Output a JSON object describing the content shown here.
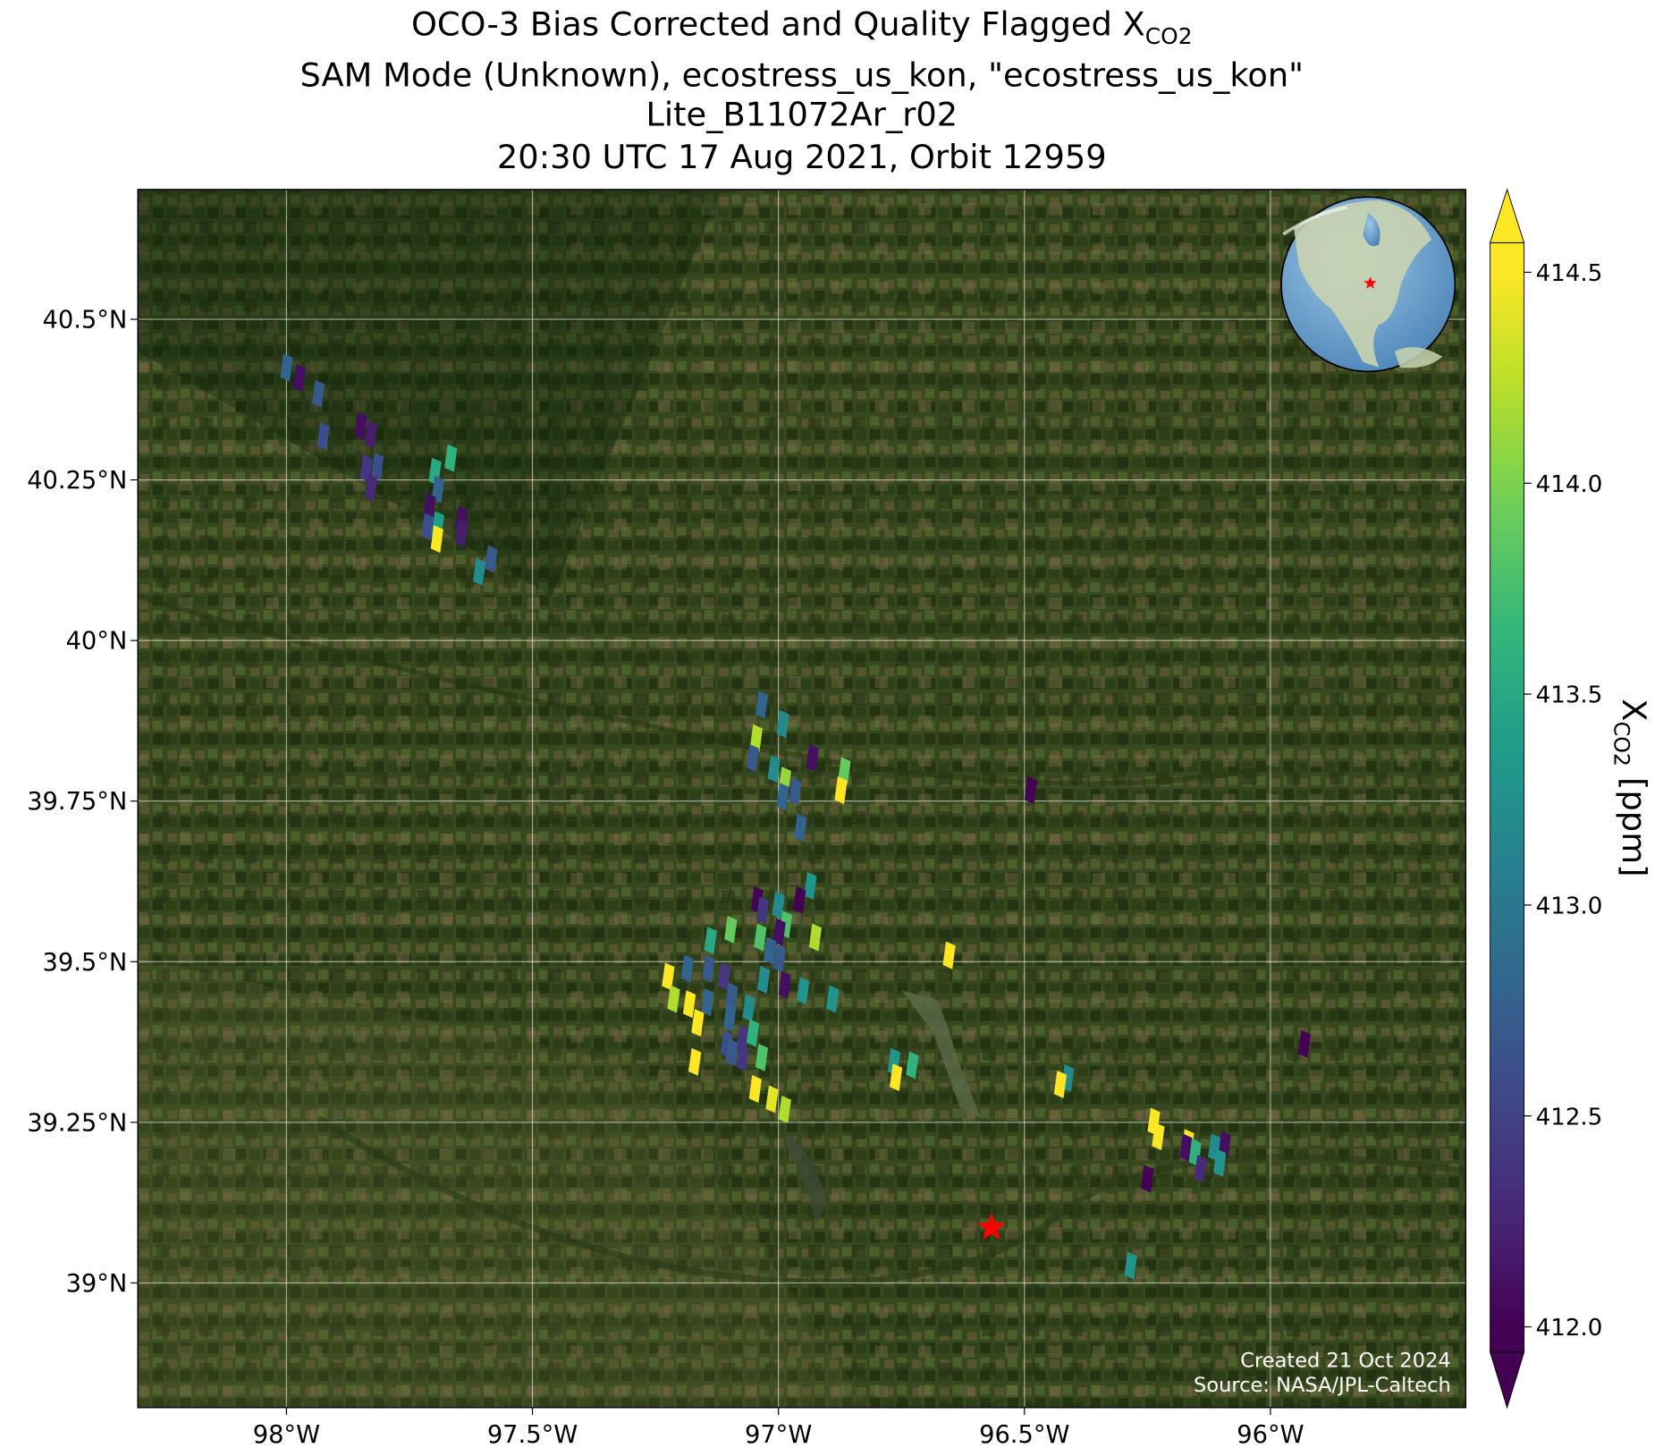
{
  "chart_data": {
    "type": "map",
    "title": "OCO-3 Bias Corrected and Quality Flagged X",
    "title_subscript": "CO2",
    "subtitle_lines": [
      "SAM Mode (Unknown), ecostress_us_kon, \"ecostress_us_kon\"",
      "Lite_B11072Ar_r02",
      "20:30 UTC 17 Aug 2021, Orbit 12959"
    ],
    "xlim": [
      -98.302,
      -95.603
    ],
    "ylim": [
      38.806,
      40.702
    ],
    "xticks": [
      {
        "value": -98,
        "label": "98°W"
      },
      {
        "value": -97.5,
        "label": "97.5°W"
      },
      {
        "value": -97,
        "label": "97°W"
      },
      {
        "value": -96.5,
        "label": "96.5°W"
      },
      {
        "value": -96,
        "label": "96°W"
      }
    ],
    "yticks": [
      {
        "value": 39,
        "label": "39°N"
      },
      {
        "value": 39.25,
        "label": "39.25°N"
      },
      {
        "value": 39.5,
        "label": "39.5°N"
      },
      {
        "value": 39.75,
        "label": "39.75°N"
      },
      {
        "value": 40,
        "label": "40°N"
      },
      {
        "value": 40.25,
        "label": "40.25°N"
      },
      {
        "value": 40.5,
        "label": "40.5°N"
      }
    ],
    "grid": true,
    "colormap": "viridis",
    "colorbar_label": "X",
    "colorbar_label_subscript": "CO2",
    "colorbar_label_unit": "[ppm]",
    "clim": [
      411.94,
      414.57
    ],
    "cticks": [
      {
        "value": 412,
        "label": "412.0"
      },
      412.5,
      {
        "value": 413,
        "label": "413.0"
      },
      413.5,
      {
        "value": 414,
        "label": "414.0"
      },
      414.5
    ],
    "site": {
      "lon": -96.567,
      "lat": 39.086
    },
    "annotations": [
      "Created 21 Oct 2024",
      "Source: NASA/JPL-Caltech"
    ],
    "soundings": {
      "lon": [
        -98.0,
        -97.974,
        -97.935,
        -97.925,
        -97.849,
        -97.828,
        -97.838,
        -97.815,
        -97.828,
        -97.698,
        -97.666,
        -97.692,
        -97.709,
        -97.713,
        -97.692,
        -97.694,
        -97.644,
        -97.644,
        -97.608,
        -97.584,
        -97.034,
        -96.991,
        -97.045,
        -97.052,
        -97.009,
        -96.987,
        -96.991,
        -96.966,
        -96.931,
        -96.866,
        -96.873,
        -96.955,
        -96.487,
        -97.043,
        -97.032,
        -97.0,
        -96.935,
        -96.957,
        -96.985,
        -97.037,
        -96.998,
        -97.097,
        -97.138,
        -96.925,
        -97.017,
        -96.998,
        -96.653,
        -97.224,
        -97.185,
        -97.142,
        -97.11,
        -97.03,
        -96.987,
        -96.95,
        -96.89,
        -97.213,
        -97.181,
        -97.144,
        -97.095,
        -97.06,
        -97.164,
        -97.099,
        -97.073,
        -97.105,
        -97.052,
        -97.034,
        -97.073,
        -97.095,
        -97.17,
        -97.047,
        -97.013,
        -96.987,
        -96.765,
        -96.728,
        -96.761,
        -96.412,
        -96.427,
        -96.237,
        -96.228,
        -96.25,
        -96.168,
        -96.172,
        -96.153,
        -96.142,
        -96.114,
        -96.093,
        -96.103,
        -95.931,
        -96.284
      ],
      "lat": [
        40.425,
        40.409,
        40.384,
        40.318,
        40.334,
        40.321,
        40.268,
        40.271,
        40.238,
        40.263,
        40.284,
        40.235,
        40.208,
        40.177,
        40.18,
        40.158,
        40.188,
        40.168,
        40.107,
        40.127,
        39.9,
        39.87,
        39.848,
        39.817,
        39.8,
        39.782,
        39.757,
        39.765,
        39.817,
        39.797,
        39.767,
        39.709,
        39.767,
        39.596,
        39.58,
        39.588,
        39.618,
        39.596,
        39.558,
        39.538,
        39.546,
        39.55,
        39.533,
        39.538,
        39.517,
        39.505,
        39.51,
        39.477,
        39.489,
        39.489,
        39.477,
        39.472,
        39.464,
        39.455,
        39.442,
        39.442,
        39.434,
        39.437,
        39.446,
        39.428,
        39.405,
        39.413,
        39.38,
        39.372,
        39.389,
        39.351,
        39.351,
        39.359,
        39.344,
        39.302,
        39.286,
        39.27,
        39.344,
        39.339,
        39.32,
        39.319,
        39.309,
        39.251,
        39.228,
        39.162,
        39.218,
        39.211,
        39.203,
        39.178,
        39.211,
        39.215,
        39.187,
        39.372,
        39.027
      ],
      "values": [
        412.8,
        412.1,
        412.7,
        412.6,
        412.1,
        412.2,
        412.4,
        412.6,
        412.3,
        413.5,
        413.6,
        412.8,
        412.1,
        412.6,
        413.4,
        414.5,
        412.1,
        412.2,
        413.2,
        412.7,
        412.8,
        413.2,
        414.2,
        412.7,
        413.2,
        414.1,
        412.8,
        412.7,
        412.1,
        413.9,
        414.5,
        412.8,
        412.0,
        412.0,
        412.4,
        413.2,
        413.3,
        412.0,
        413.8,
        413.8,
        412.1,
        413.9,
        413.5,
        414.2,
        412.8,
        412.7,
        414.5,
        414.5,
        412.8,
        412.7,
        412.4,
        413.2,
        412.1,
        413.3,
        413.3,
        414.2,
        414.5,
        412.8,
        412.7,
        413.2,
        414.5,
        412.8,
        412.4,
        412.6,
        413.6,
        413.8,
        412.4,
        412.7,
        414.5,
        414.5,
        414.4,
        414.2,
        413.3,
        413.6,
        414.5,
        413.2,
        414.5,
        414.5,
        414.5,
        412.0,
        414.5,
        412.1,
        413.6,
        412.3,
        413.2,
        412.1,
        413.3,
        412.0,
        413.3
      ]
    }
  }
}
